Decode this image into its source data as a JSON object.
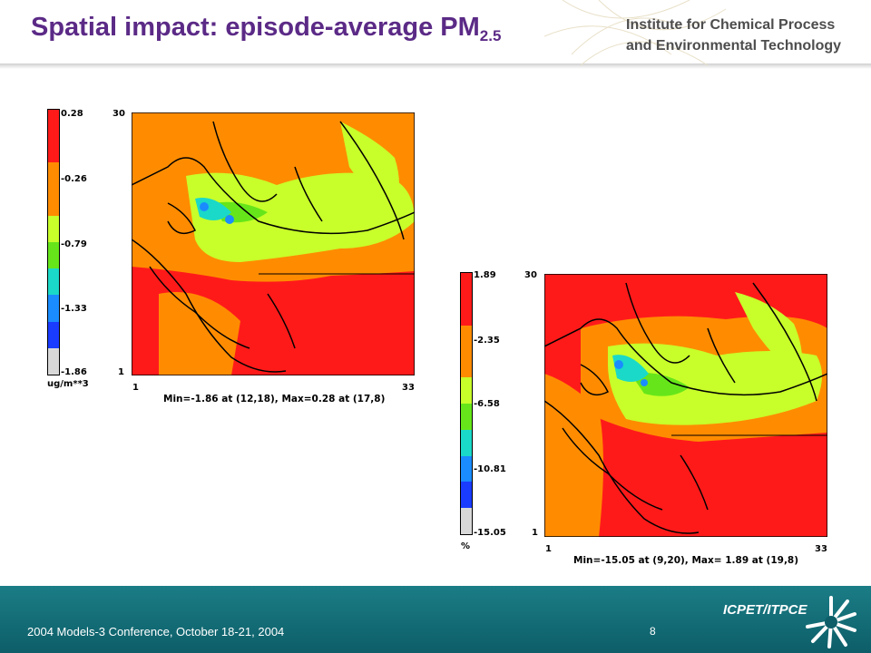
{
  "slide": {
    "title_main": "Spatial impact:  episode-average PM",
    "title_sub": "2.5",
    "institute_line1": "Institute for Chemical Process",
    "institute_line2": "and Environmental Technology",
    "footer_text": "2004 Models-3 Conference, October 18-21, 2004",
    "page_number": "8",
    "logo_text": "ICPET/ITPCE"
  },
  "map_left": {
    "colorbar_labels": [
      "0.28",
      "-0.26",
      "-0.79",
      "-1.33",
      "-1.86"
    ],
    "unit": "ug/m**3",
    "y_top": "30",
    "y_bottom": "1",
    "x_left": "1",
    "x_right": "33",
    "stats": "Min=-1.86 at (12,18), Max=0.28 at (17,8)",
    "colors": [
      "#ff1a1a",
      "#ff1a1a",
      "#ff8c00",
      "#ff8c00",
      "#c8ff2a",
      "#66e61a",
      "#1ad9c8",
      "#1a8cff",
      "#1a3cff",
      "#d8d8d8"
    ]
  },
  "map_right": {
    "colorbar_labels": [
      "1.89",
      "-2.35",
      "-6.58",
      "-10.81",
      "-15.05"
    ],
    "unit": "%",
    "y_top": "30",
    "y_bottom": "1",
    "x_left": "1",
    "x_right": "33",
    "stats": "Min=-15.05 at (9,20), Max= 1.89 at (19,8)",
    "colors": [
      "#ff1a1a",
      "#ff1a1a",
      "#ff8c00",
      "#ff8c00",
      "#c8ff2a",
      "#66e61a",
      "#1ad9c8",
      "#1a8cff",
      "#1a3cff",
      "#d8d8d8"
    ]
  }
}
